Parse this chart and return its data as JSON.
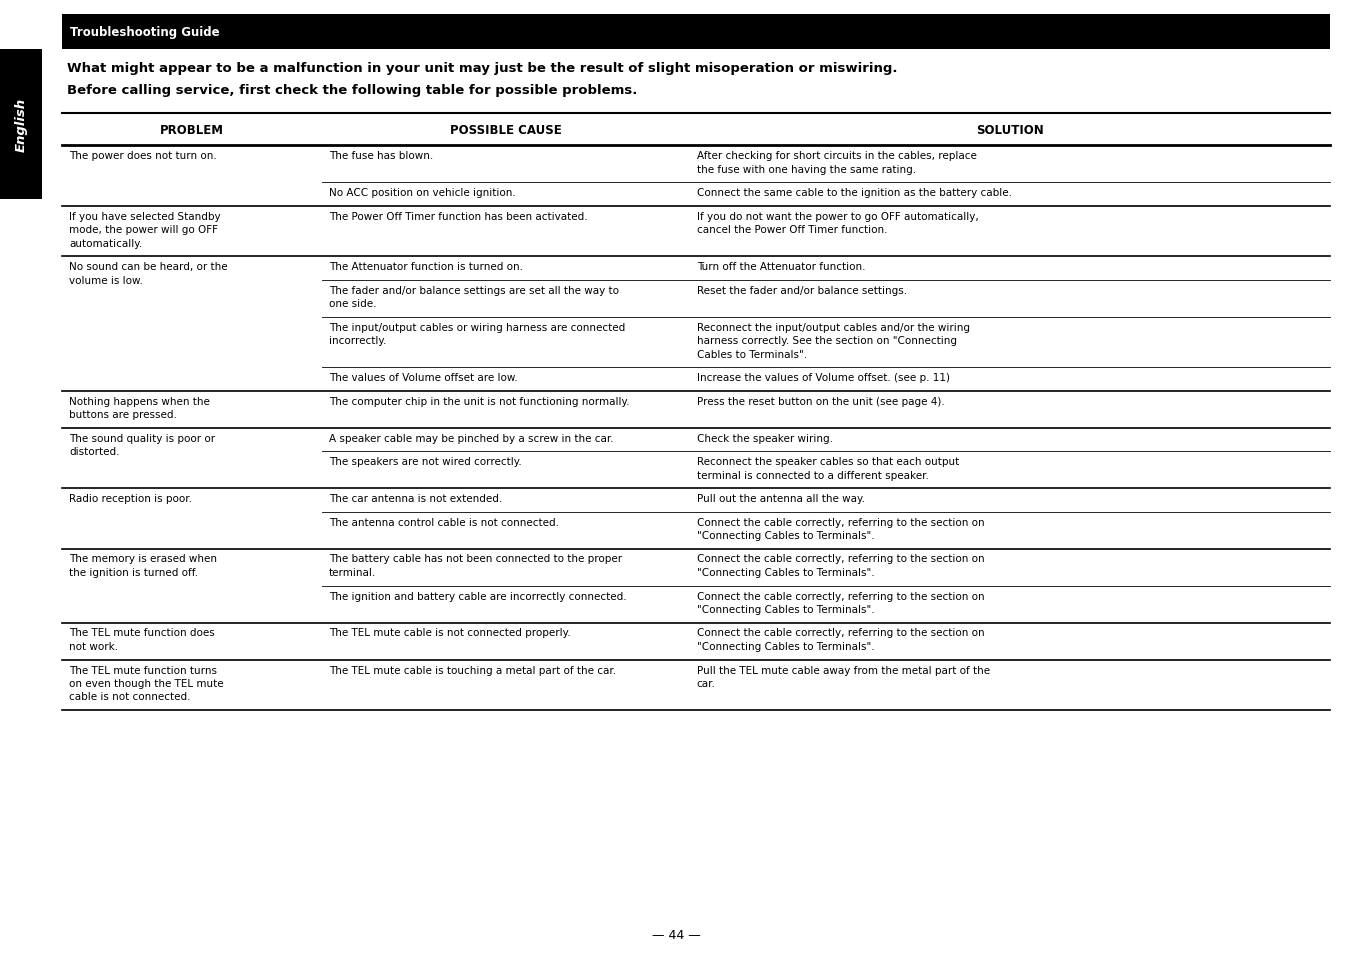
{
  "title": "Troubleshooting Guide",
  "intro_line1": "What might appear to be a malfunction in your unit may just be the result of slight misoperation or miswiring.",
  "intro_line2": "Before calling service, first check the following table for possible problems.",
  "col_headers": [
    "PROBLEM",
    "POSSIBLE CAUSE",
    "SOLUTION"
  ],
  "page_number": "— 44 —",
  "side_label": "English",
  "rows": [
    {
      "problem": "The power does not turn on.",
      "causes": [
        "The fuse has blown.",
        "No ACC position on vehicle ignition."
      ],
      "solutions": [
        "After checking for short circuits in the cables, replace\nthe fuse with one having the same rating.",
        "Connect the same cable to the ignition as the battery cable."
      ]
    },
    {
      "problem": "If you have selected Standby\nmode, the power will go OFF\nautomatically.",
      "causes": [
        "The Power Off Timer function has been activated."
      ],
      "solutions": [
        "If you do not want the power to go OFF automatically,\ncancel the Power Off Timer function."
      ]
    },
    {
      "problem": "No sound can be heard, or the\nvolume is low.",
      "causes": [
        "The Attenuator function is turned on.",
        "The fader and/or balance settings are set all the way to\none side.",
        "The input/output cables or wiring harness are connected\nincorrectly.",
        "The values of Volume offset are low."
      ],
      "solutions": [
        "Turn off the Attenuator function.",
        "Reset the fader and/or balance settings.",
        "Reconnect the input/output cables and/or the wiring\nharness correctly. See the section on \"Connecting\nCables to Terminals\".",
        "Increase the values of Volume offset. (see p. 11)"
      ]
    },
    {
      "problem": "Nothing happens when the\nbuttons are pressed.",
      "causes": [
        "The computer chip in the unit is not functioning normally."
      ],
      "solutions": [
        "Press the reset button on the unit (see page 4)."
      ]
    },
    {
      "problem": "The sound quality is poor or\ndistorted.",
      "causes": [
        "A speaker cable may be pinched by a screw in the car.",
        "The speakers are not wired correctly."
      ],
      "solutions": [
        "Check the speaker wiring.",
        "Reconnect the speaker cables so that each output\nterminal is connected to a different speaker."
      ]
    },
    {
      "problem": "Radio reception is poor.",
      "causes": [
        "The car antenna is not extended.",
        "The antenna control cable is not connected."
      ],
      "solutions": [
        "Pull out the antenna all the way.",
        "Connect the cable correctly, referring to the section on\n\"Connecting Cables to Terminals\"."
      ]
    },
    {
      "problem": "The memory is erased when\nthe ignition is turned off.",
      "causes": [
        "The battery cable has not been connected to the proper\nterminal.",
        "The ignition and battery cable are incorrectly connected."
      ],
      "solutions": [
        "Connect the cable correctly, referring to the section on\n\"Connecting Cables to Terminals\".",
        "Connect the cable correctly, referring to the section on\n\"Connecting Cables to Terminals\"."
      ]
    },
    {
      "problem": "The TEL mute function does\nnot work.",
      "causes": [
        "The TEL mute cable is not connected properly."
      ],
      "solutions": [
        "Connect the cable correctly, referring to the section on\n\"Connecting Cables to Terminals\"."
      ]
    },
    {
      "problem": "The TEL mute function turns\non even though the TEL mute\ncable is not connected.",
      "causes": [
        "The TEL mute cable is touching a metal part of the car."
      ],
      "solutions": [
        "Pull the TEL mute cable away from the metal part of the\ncar."
      ]
    }
  ],
  "bg_color": "#ffffff",
  "header_bg": "#000000",
  "header_fg": "#ffffff",
  "text_color": "#000000",
  "side_bar_color": "#000000",
  "font_size_title": 8.5,
  "font_size_header": 8.5,
  "font_size_body": 7.5,
  "font_size_intro": 9.5,
  "font_size_page": 9
}
